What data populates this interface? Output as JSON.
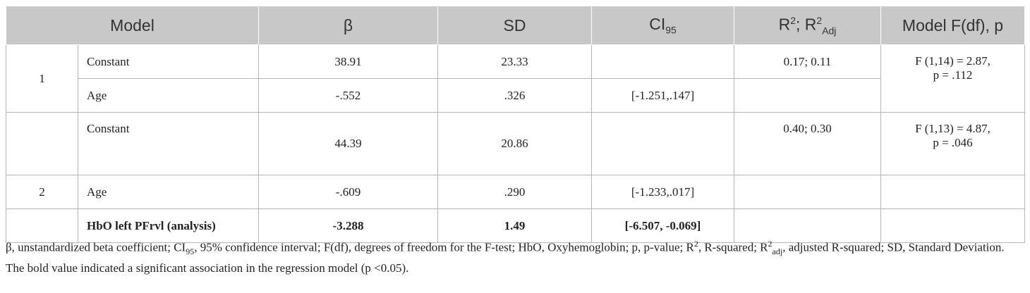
{
  "table": {
    "header": {
      "model": "Model",
      "beta": "β",
      "sd": "SD",
      "ci": {
        "base": "CI",
        "sub": "95"
      },
      "r2": {
        "r": "R",
        "sup": "2",
        "sep": "; ",
        "r_adj": "R",
        "sup_adj": "2",
        "sub_adj": "Adj"
      },
      "f": "Model F(df), p"
    },
    "rows": [
      {
        "model": "1",
        "label": "Constant",
        "beta": "38.91",
        "sd": "23.33",
        "r2": "0.17; 0.11",
        "f": [
          "F (1,14) = 2.87,",
          "p = .112"
        ]
      },
      {
        "label": "Age",
        "beta": "-.552",
        "sd": ".326",
        "ci": "[-1.251,.147]"
      },
      {
        "label": "Constant",
        "beta": "44.39",
        "sd": "20.86",
        "r2": "0.40; 0.30",
        "f": [
          "F (1,13) = 4.87,",
          "p = .046"
        ]
      },
      {
        "model": "2",
        "label": "Age",
        "beta": "-.609",
        "sd": ".290",
        "ci": "[-1.233,.017]"
      },
      {
        "label": "HbO left PFrvl (analysis)",
        "beta": "-3.288",
        "sd": "1.49",
        "ci": "[-6.507, -0.069]"
      }
    ]
  },
  "footnotes": [
    [
      {
        "text": "β, unstandardized beta coefficient; CI"
      },
      {
        "sub": "95"
      },
      {
        "text": ", 95% confidence interval; F(df), degrees of freedom for the F-test; HbO, Oxyhemoglobin; p, p-value; R"
      },
      {
        "sup": "2"
      },
      {
        "text": ", R-squared; R"
      },
      {
        "sup": "2"
      },
      {
        "sub": "adj"
      },
      {
        "text": ", adjusted R-squared; SD, Standard Deviation."
      }
    ],
    [
      {
        "text": "The bold value indicated a significant association in the regression model (p <0.05)."
      }
    ]
  ]
}
